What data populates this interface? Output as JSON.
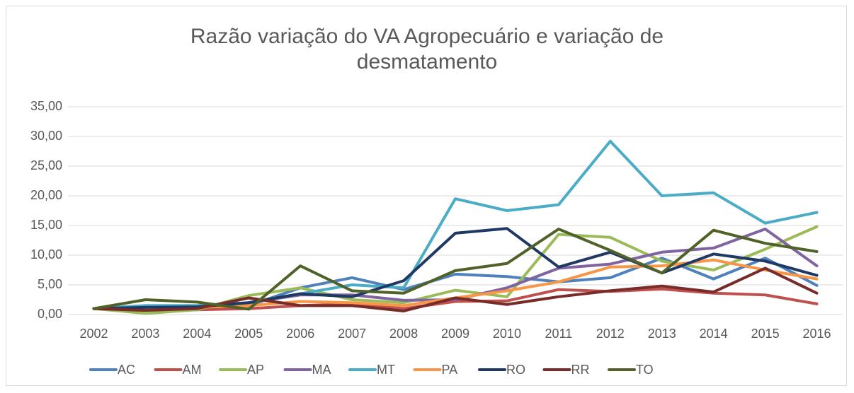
{
  "chart_data": {
    "type": "line",
    "title": "Razão variação do VA Agropecuário e variação de desmatamento",
    "categories": [
      "2002",
      "2003",
      "2004",
      "2005",
      "2006",
      "2007",
      "2008",
      "2009",
      "2010",
      "2011",
      "2012",
      "2013",
      "2014",
      "2015",
      "2016"
    ],
    "ylim": [
      0,
      35
    ],
    "yticks": [
      {
        "value": 0,
        "label": "0,00"
      },
      {
        "value": 5,
        "label": "5,00"
      },
      {
        "value": 10,
        "label": "10,00"
      },
      {
        "value": 15,
        "label": "15,00"
      },
      {
        "value": 20,
        "label": "20,00"
      },
      {
        "value": 25,
        "label": "25,00"
      },
      {
        "value": 30,
        "label": "30,00"
      },
      {
        "value": 35,
        "label": "35,00"
      }
    ],
    "grid": true,
    "legend": "bottom",
    "series": [
      {
        "name": "AC",
        "color": "#4f81bd",
        "values": [
          1.0,
          1.5,
          1.5,
          1.5,
          4.5,
          6.2,
          4.2,
          6.8,
          6.4,
          5.5,
          6.2,
          9.5,
          6.0,
          9.5,
          4.9
        ]
      },
      {
        "name": "AM",
        "color": "#c0504d",
        "values": [
          1.0,
          1.0,
          0.8,
          1.0,
          1.5,
          1.8,
          1.0,
          2.2,
          2.3,
          4.2,
          3.9,
          4.3,
          3.6,
          3.3,
          1.8
        ]
      },
      {
        "name": "AP",
        "color": "#9bbb59",
        "values": [
          1.0,
          0.2,
          0.8,
          3.2,
          4.5,
          2.5,
          2.0,
          4.1,
          3.0,
          13.5,
          13.0,
          9.0,
          7.5,
          11.0,
          14.8
        ]
      },
      {
        "name": "MA",
        "color": "#8064a2",
        "values": [
          1.0,
          1.2,
          1.3,
          2.0,
          3.3,
          3.3,
          2.4,
          2.5,
          4.5,
          7.8,
          8.5,
          10.5,
          11.2,
          14.4,
          8.2
        ]
      },
      {
        "name": "MT",
        "color": "#4bacc6",
        "values": [
          1.0,
          1.5,
          1.5,
          2.0,
          3.5,
          5.0,
          4.5,
          19.5,
          17.5,
          18.5,
          29.2,
          20.0,
          20.5,
          15.4,
          17.2
        ]
      },
      {
        "name": "PA",
        "color": "#f79646",
        "values": [
          1.0,
          1.0,
          1.2,
          1.5,
          2.2,
          2.0,
          1.5,
          2.8,
          4.0,
          5.5,
          8.0,
          8.2,
          9.2,
          7.5,
          6.0
        ]
      },
      {
        "name": "RO",
        "color": "#1f3864",
        "values": [
          1.0,
          1.2,
          1.3,
          2.0,
          3.5,
          3.0,
          5.7,
          13.7,
          14.5,
          8.0,
          10.5,
          7.0,
          10.2,
          9.0,
          6.6
        ]
      },
      {
        "name": "RR",
        "color": "#772c2a",
        "values": [
          1.0,
          0.7,
          1.0,
          2.8,
          1.5,
          1.5,
          0.6,
          2.8,
          1.7,
          3.0,
          4.0,
          4.8,
          3.8,
          7.8,
          3.6
        ]
      },
      {
        "name": "TO",
        "color": "#4f6228",
        "values": [
          1.0,
          2.5,
          2.1,
          0.9,
          8.2,
          4.0,
          3.6,
          7.4,
          8.6,
          14.4,
          10.8,
          7.0,
          14.2,
          12.0,
          10.6
        ]
      }
    ]
  }
}
